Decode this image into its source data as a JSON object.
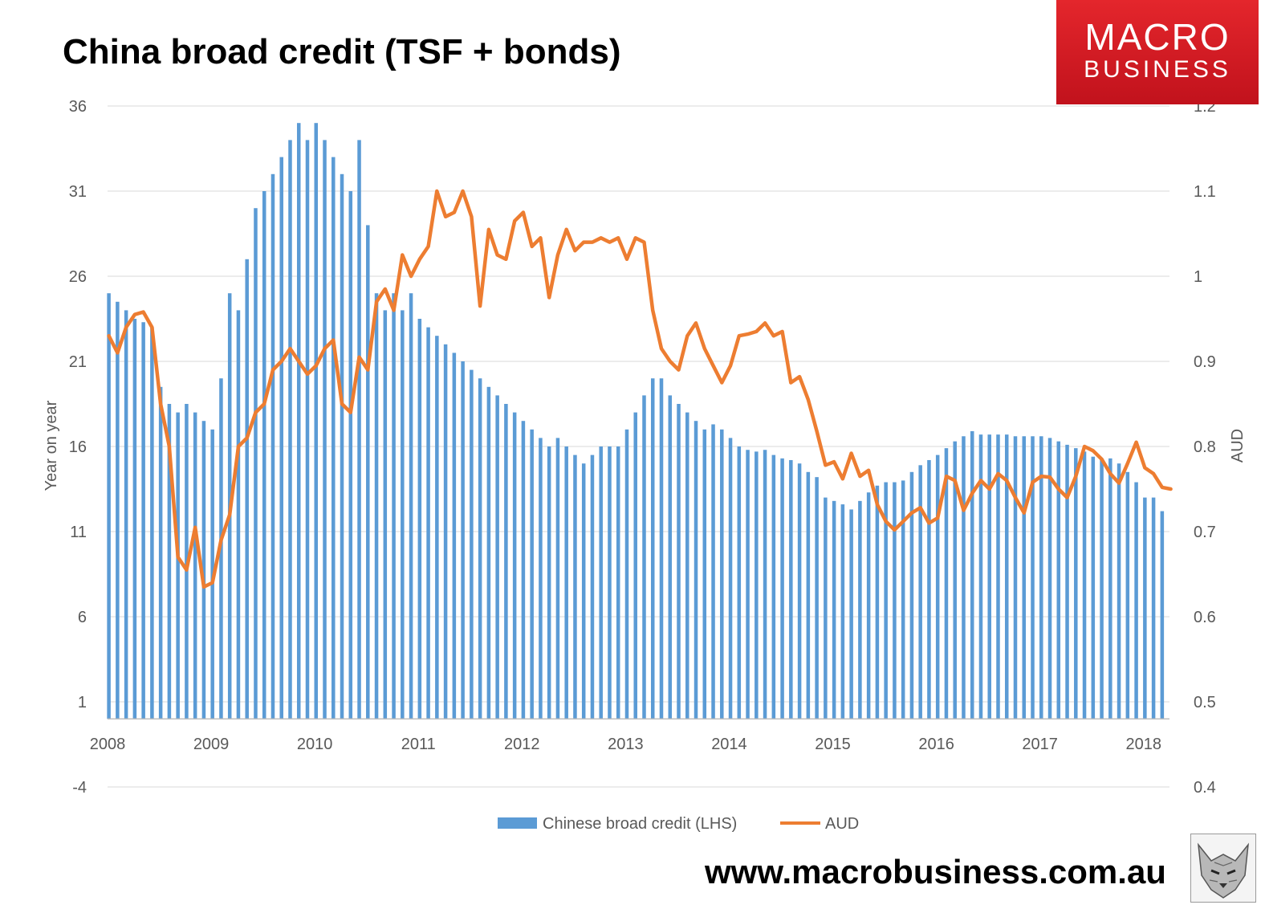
{
  "title": "China broad credit (TSF + bonds)",
  "logo": {
    "line1": "MACRO",
    "line2": "BUSINESS"
  },
  "website": "www.macrobusiness.com.au",
  "colors": {
    "bars": "#5b9bd5",
    "line": "#ed7d31",
    "grid": "#d9d9d9",
    "axis_text": "#595959",
    "logo_red": "#d7191f"
  },
  "chart_data": {
    "type": "bar",
    "title": "China broad credit (TSF + bonds)",
    "ylabel_left": "Year on year",
    "ylabel_right": "AUD",
    "xlabel": "",
    "y_left": {
      "min": -4,
      "max": 36,
      "ticks": [
        -4,
        1,
        6,
        11,
        16,
        21,
        26,
        31,
        36
      ]
    },
    "y_right": {
      "min": 0.4,
      "max": 1.2,
      "ticks": [
        "0.4",
        "0.5",
        "0.6",
        "0.7",
        "0.8",
        "0.9",
        "1",
        "1.1",
        "1.2"
      ]
    },
    "x_ticks": [
      "2008",
      "2009",
      "2010",
      "2011",
      "2012",
      "2013",
      "2014",
      "2015",
      "2016",
      "2017",
      "2018"
    ],
    "x_range": [
      2008.0,
      2018.25
    ],
    "grid": true,
    "legend_position": "bottom",
    "series": [
      {
        "name": "Chinese broad credit (LHS)",
        "type": "bar",
        "axis": "left",
        "x_start": 2008.0,
        "step_months": 1,
        "values": [
          25.0,
          24.5,
          24.0,
          23.5,
          23.3,
          23.0,
          19.5,
          18.5,
          18.0,
          18.5,
          18.0,
          17.5,
          17.0,
          20.0,
          25.0,
          24.0,
          27.0,
          30.0,
          31.0,
          32.0,
          33.0,
          34.0,
          35.0,
          34.0,
          35.0,
          34.0,
          33.0,
          32.0,
          31.0,
          34.0,
          29.0,
          25.0,
          24.0,
          25.0,
          24.0,
          25.0,
          23.5,
          23.0,
          22.5,
          22.0,
          21.5,
          21.0,
          20.5,
          20.0,
          19.5,
          19.0,
          18.5,
          18.0,
          17.5,
          17.0,
          16.5,
          16.0,
          16.5,
          16.0,
          15.5,
          15.0,
          15.5,
          16.0,
          16.0,
          16.0,
          17.0,
          18.0,
          19.0,
          20.0,
          20.0,
          19.0,
          18.5,
          18.0,
          17.5,
          17.0,
          17.3,
          17.0,
          16.5,
          16.0,
          15.8,
          15.7,
          15.8,
          15.5,
          15.3,
          15.2,
          15.0,
          14.5,
          14.2,
          13.0,
          12.8,
          12.6,
          12.3,
          12.8,
          13.3,
          13.7,
          13.9,
          13.9,
          14.0,
          14.5,
          14.9,
          15.2,
          15.5,
          15.9,
          16.3,
          16.6,
          16.9,
          16.7,
          16.7,
          16.7,
          16.7,
          16.6,
          16.6,
          16.6,
          16.6,
          16.5,
          16.3,
          16.1,
          15.9,
          15.7,
          15.4,
          15.3,
          15.3,
          15.0,
          14.5,
          13.9,
          13.0,
          13.0,
          12.2
        ]
      },
      {
        "name": "AUD",
        "type": "line",
        "axis": "right",
        "x_start": 2008.0,
        "step_months": 1,
        "values": [
          0.93,
          0.91,
          0.94,
          0.955,
          0.958,
          0.94,
          0.85,
          0.8,
          0.67,
          0.655,
          0.705,
          0.635,
          0.64,
          0.69,
          0.72,
          0.8,
          0.81,
          0.84,
          0.85,
          0.89,
          0.9,
          0.915,
          0.9,
          0.885,
          0.895,
          0.915,
          0.925,
          0.85,
          0.84,
          0.905,
          0.89,
          0.97,
          0.985,
          0.96,
          1.025,
          1.0,
          1.02,
          1.035,
          1.1,
          1.07,
          1.075,
          1.1,
          1.07,
          0.965,
          1.055,
          1.025,
          1.02,
          1.065,
          1.075,
          1.035,
          1.045,
          0.975,
          1.025,
          1.055,
          1.03,
          1.04,
          1.04,
          1.045,
          1.04,
          1.045,
          1.02,
          1.045,
          1.04,
          0.96,
          0.915,
          0.9,
          0.89,
          0.93,
          0.945,
          0.915,
          0.895,
          0.875,
          0.895,
          0.93,
          0.932,
          0.935,
          0.945,
          0.93,
          0.935,
          0.875,
          0.882,
          0.855,
          0.818,
          0.778,
          0.782,
          0.762,
          0.792,
          0.765,
          0.772,
          0.732,
          0.712,
          0.702,
          0.712,
          0.722,
          0.728,
          0.71,
          0.716,
          0.765,
          0.76,
          0.725,
          0.745,
          0.76,
          0.75,
          0.768,
          0.76,
          0.74,
          0.722,
          0.758,
          0.765,
          0.764,
          0.75,
          0.74,
          0.765,
          0.8,
          0.795,
          0.785,
          0.768,
          0.757,
          0.78,
          0.805,
          0.775,
          0.768,
          0.752,
          0.75
        ]
      }
    ]
  }
}
